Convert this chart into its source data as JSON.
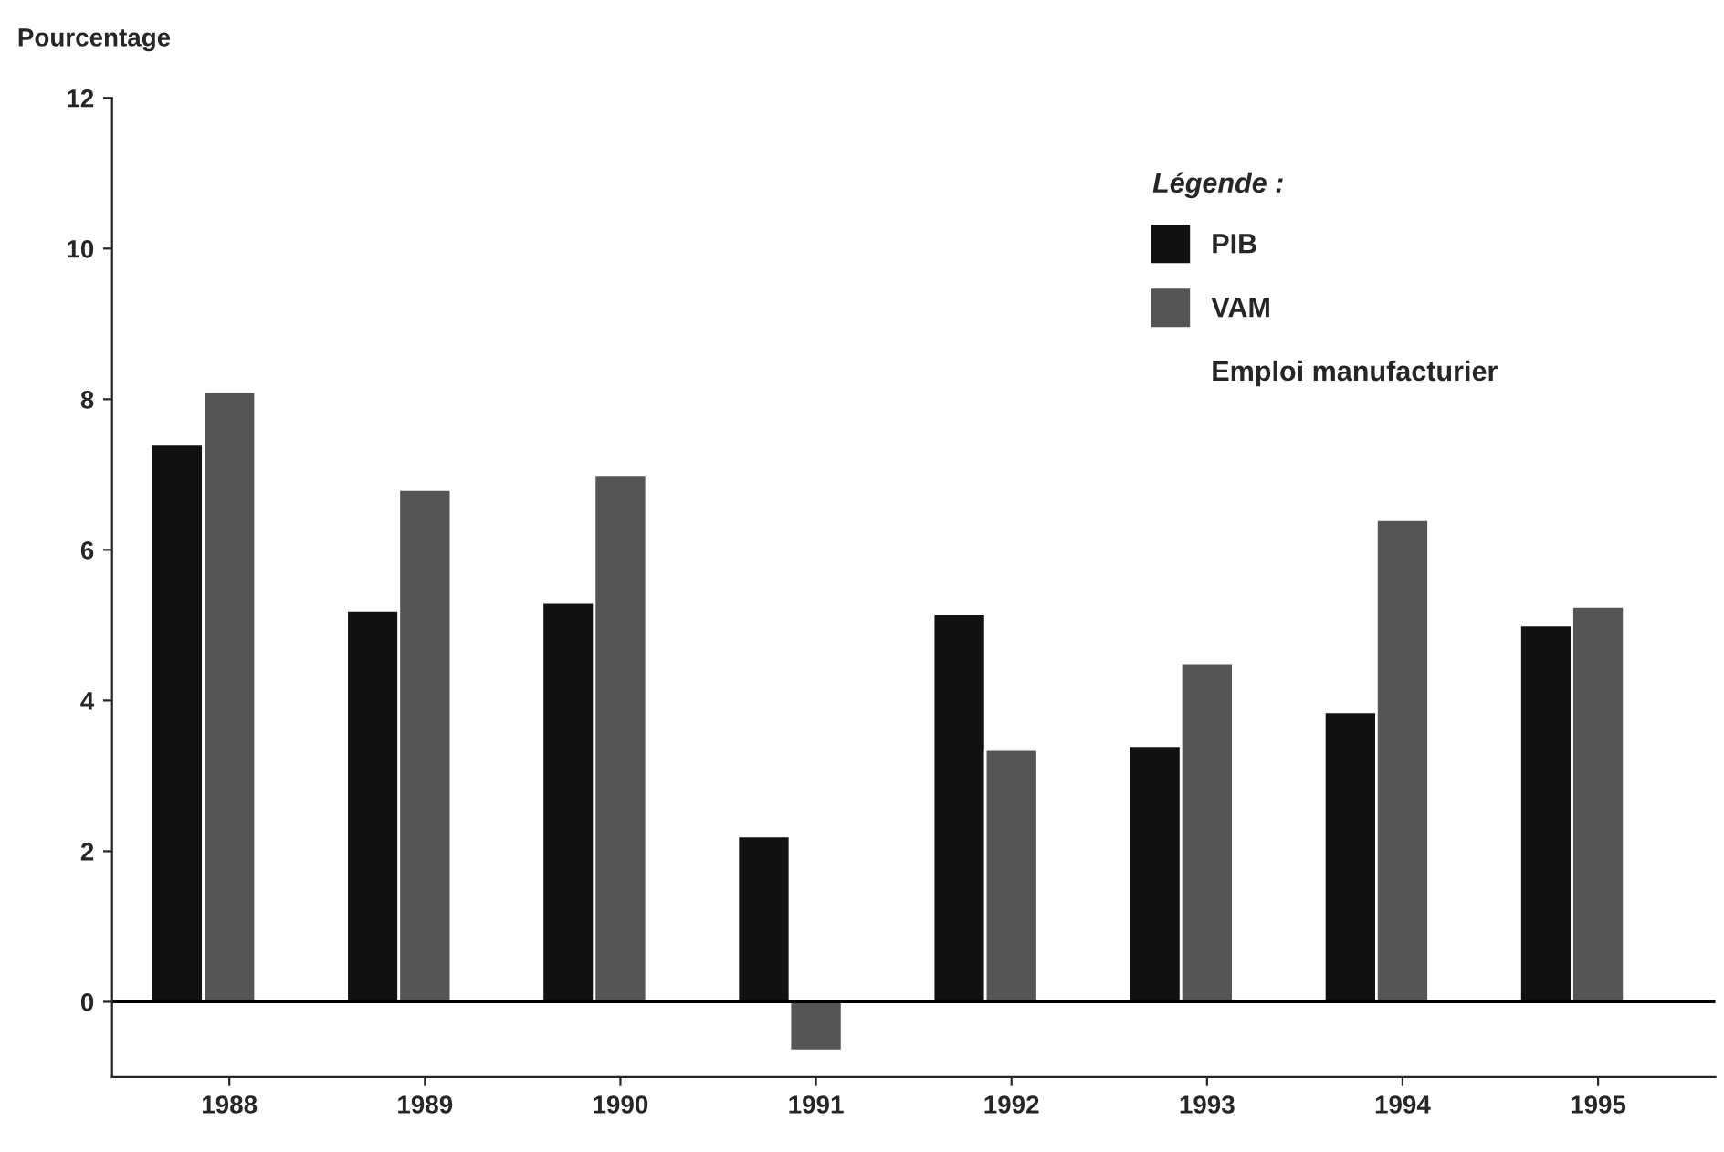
{
  "chart_data": {
    "type": "bar",
    "ylabel": "Pourcentage",
    "legend_title": "Légende :",
    "categories": [
      "1988",
      "1989",
      "1990",
      "1991",
      "1992",
      "1993",
      "1994",
      "1995"
    ],
    "series": [
      {
        "name": "PIB",
        "color": "#111111",
        "values": [
          7.4,
          5.2,
          5.3,
          2.2,
          5.15,
          3.4,
          3.85,
          5.0
        ]
      },
      {
        "name": "VAM",
        "color": "#555555",
        "values": [
          8.1,
          6.8,
          7.0,
          -0.65,
          3.35,
          4.5,
          6.4,
          5.25
        ]
      },
      {
        "name": "Emploi manufacturier",
        "values": [
          null,
          null,
          null,
          null,
          null,
          null,
          null,
          null
        ]
      }
    ],
    "ylim": [
      -1,
      12
    ],
    "yticks": [
      0,
      2,
      4,
      6,
      8,
      10,
      12
    ],
    "ref_lines": [
      {
        "axis": "y",
        "value": 0,
        "color": "#000000"
      }
    ],
    "grid": false,
    "legend": "top right"
  }
}
